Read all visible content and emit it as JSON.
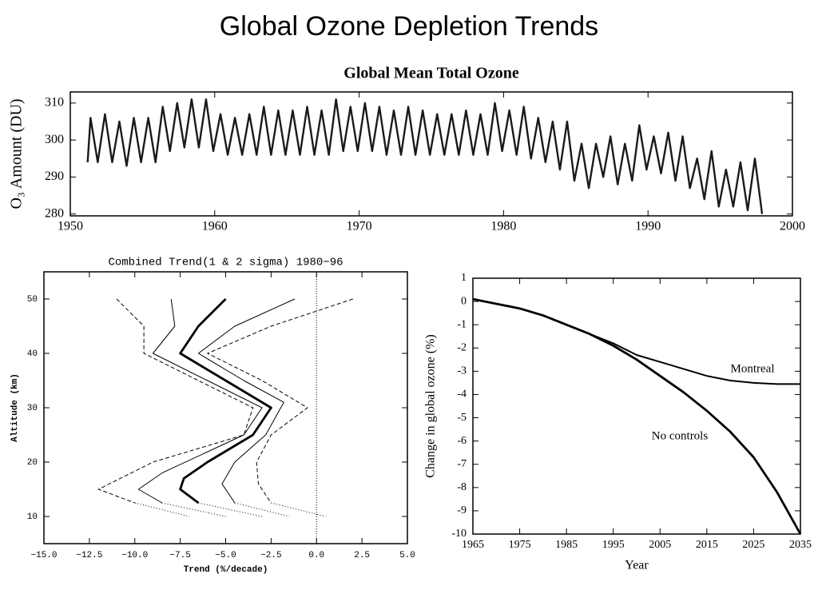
{
  "title": "Global Ozone Depletion Trends",
  "chart_data": [
    {
      "type": "line",
      "title": "Global Mean Total Ozone",
      "ylabel": "O₃ Amount (DU)",
      "xlim": [
        1950,
        2000
      ],
      "ylim": [
        279.5,
        313
      ],
      "xticks": [
        1950,
        1960,
        1970,
        1980,
        1990,
        2000
      ],
      "yticks": [
        280,
        290,
        300,
        310
      ],
      "x": [
        1951.2,
        1951.4,
        1951.9,
        1952.4,
        1952.9,
        1953.4,
        1953.9,
        1954.4,
        1954.9,
        1955.4,
        1955.9,
        1956.4,
        1956.9,
        1957.4,
        1957.9,
        1958.4,
        1958.9,
        1959.4,
        1959.9,
        1960.4,
        1960.9,
        1961.4,
        1961.9,
        1962.4,
        1962.9,
        1963.4,
        1963.9,
        1964.4,
        1964.9,
        1965.4,
        1965.9,
        1966.4,
        1966.9,
        1967.4,
        1967.9,
        1968.4,
        1968.9,
        1969.4,
        1969.9,
        1970.4,
        1970.9,
        1971.4,
        1971.9,
        1972.4,
        1972.9,
        1973.4,
        1973.9,
        1974.4,
        1974.9,
        1975.4,
        1975.9,
        1976.4,
        1976.9,
        1977.4,
        1977.9,
        1978.4,
        1978.9,
        1979.4,
        1979.9,
        1980.4,
        1980.9,
        1981.4,
        1981.9,
        1982.4,
        1982.9,
        1983.4,
        1983.9,
        1984.4,
        1984.9,
        1985.4,
        1985.9,
        1986.4,
        1986.9,
        1987.4,
        1987.9,
        1988.4,
        1988.9,
        1989.4,
        1989.9,
        1990.4,
        1990.9,
        1991.4,
        1991.9,
        1992.4,
        1992.9,
        1993.4,
        1993.9,
        1994.4,
        1994.9,
        1995.4,
        1995.9,
        1996.4,
        1996.9,
        1997.4,
        1997.9
      ],
      "series": [
        {
          "color": "#1a1a1a",
          "values": [
            294,
            306,
            294,
            307,
            294,
            305,
            293,
            306,
            294,
            306,
            294,
            309,
            297,
            310,
            298,
            311,
            298,
            311,
            297,
            307,
            296,
            306,
            296,
            307,
            296,
            309,
            296,
            308,
            296,
            308,
            296,
            309,
            296,
            308,
            296,
            311,
            297,
            309,
            297,
            310,
            297,
            309,
            296,
            308,
            296,
            309,
            296,
            308,
            296,
            307,
            296,
            307,
            296,
            308,
            296,
            307,
            296,
            310,
            297,
            308,
            296,
            309,
            295,
            306,
            294,
            305,
            292,
            305,
            289,
            299,
            287,
            299,
            290,
            301,
            288,
            299,
            289,
            304,
            292,
            301,
            291,
            302,
            289,
            301,
            287,
            295,
            284,
            297,
            282,
            292,
            282,
            294,
            281,
            295,
            280
          ]
        }
      ]
    },
    {
      "type": "line",
      "title": "Combined Trend(1 & 2 sigma) 1980−96",
      "xlabel": "Trend (%/decade)",
      "ylabel": "Altitude (km)",
      "xlim": [
        -15,
        5
      ],
      "ylim": [
        5,
        55
      ],
      "xticks": [
        {
          "value": -15,
          "label": "−15.0"
        },
        {
          "value": -12.5,
          "label": "−12.5"
        },
        {
          "value": -10,
          "label": "−10.0"
        },
        {
          "value": -7.5,
          "label": "−7.5"
        },
        {
          "value": -5,
          "label": "−5.0"
        },
        {
          "value": -2.5,
          "label": "−2.5"
        },
        {
          "value": 0,
          "label": "0.0"
        },
        {
          "value": 2.5,
          "label": "2.5"
        },
        {
          "value": 5,
          "label": "5.0"
        }
      ],
      "yticks": [
        10,
        20,
        30,
        40,
        50
      ],
      "series": [
        {
          "style": "thick",
          "color": "#000000",
          "x": [
            -5,
            -6.5,
            -7.5,
            -5,
            -2.5,
            -3.5,
            -6,
            -7.3,
            -7.5,
            -6.5
          ],
          "values": [
            50,
            45,
            40,
            35,
            30,
            25,
            20,
            17,
            15,
            12.5
          ]
        },
        {
          "style": "thin",
          "color": "#000000",
          "x": [
            -8,
            -7.8,
            -9,
            -6,
            -3,
            -4,
            -8.5,
            -9.8,
            -8.5
          ],
          "values": [
            50,
            45,
            40,
            35,
            30,
            25,
            18,
            15,
            12.5
          ]
        },
        {
          "style": "thin",
          "color": "#000000",
          "x": [
            -1.2,
            -4.5,
            -6.5,
            -4,
            -1.8,
            -2.8,
            -4.5,
            -5.2,
            -4.5
          ],
          "values": [
            50,
            45,
            40,
            35,
            31,
            25,
            20,
            16,
            12.5
          ]
        },
        {
          "style": "dashed",
          "color": "#000000",
          "x": [
            -11,
            -9.5,
            -9.5,
            -6.5,
            -3.5,
            -4,
            -9,
            -12,
            -10
          ],
          "values": [
            50,
            45,
            40,
            35,
            30,
            25,
            20,
            15,
            12.5
          ]
        },
        {
          "style": "dashed",
          "color": "#000000",
          "x": [
            2,
            -2.5,
            -6,
            -3,
            -0.5,
            -2.5,
            -3.3,
            -3.2,
            -2.5
          ],
          "values": [
            50,
            45,
            40,
            35,
            30,
            25,
            20,
            16,
            12.5
          ]
        },
        {
          "style": "dotted",
          "color": "#000000",
          "x": [
            -10,
            -7
          ],
          "values": [
            12.5,
            10
          ]
        },
        {
          "style": "dotted",
          "color": "#000000",
          "x": [
            -8.5,
            -5
          ],
          "values": [
            12.5,
            10
          ]
        },
        {
          "style": "dotted",
          "color": "#000000",
          "x": [
            -6.5,
            -3
          ],
          "values": [
            12.5,
            10
          ]
        },
        {
          "style": "dotted",
          "color": "#000000",
          "x": [
            -4.5,
            -1.5
          ],
          "values": [
            12.5,
            10
          ]
        },
        {
          "style": "dotted",
          "color": "#000000",
          "x": [
            -2.5,
            0.5
          ],
          "values": [
            12.5,
            10
          ]
        }
      ]
    },
    {
      "type": "line",
      "xlabel": "Year",
      "ylabel": "Change in global ozone (%)",
      "xlim": [
        1965,
        2035
      ],
      "ylim": [
        -10,
        1
      ],
      "xticks": [
        1965,
        1975,
        1985,
        1995,
        2005,
        2015,
        2025,
        2035
      ],
      "yticks": [
        1,
        0,
        -1,
        -2,
        -3,
        -4,
        -5,
        -6,
        -7,
        -8,
        -9,
        -10
      ],
      "x": [
        1965,
        1970,
        1975,
        1980,
        1985,
        1990,
        1995,
        2000,
        2005,
        2010,
        2015,
        2020,
        2025,
        2030,
        2035
      ],
      "series": [
        {
          "name": "Montreal",
          "style": "medium",
          "color": "#000000",
          "values": [
            0.1,
            -0.1,
            -0.3,
            -0.6,
            -1,
            -1.4,
            -1.8,
            -2.3,
            -2.6,
            -2.9,
            -3.2,
            -3.4,
            -3.5,
            -3.55,
            -3.55
          ]
        },
        {
          "name": "No controls",
          "style": "thick",
          "color": "#000000",
          "values": [
            0.1,
            -0.1,
            -0.3,
            -0.6,
            -1,
            -1.4,
            -1.9,
            -2.5,
            -3.2,
            -3.9,
            -4.7,
            -5.6,
            -6.7,
            -8.2,
            -10
          ]
        }
      ]
    }
  ]
}
